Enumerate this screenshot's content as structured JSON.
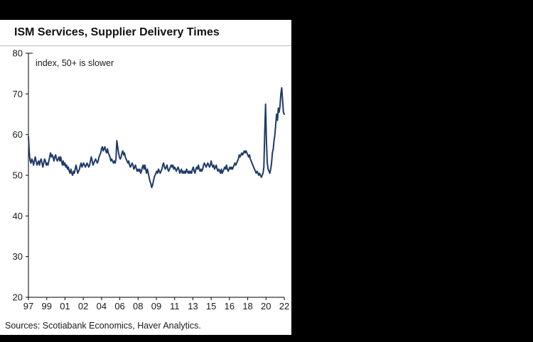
{
  "header": {
    "title": "ISM Services, Supplier Delivery Times"
  },
  "footer": {
    "sources": "Sources: Scotiabank Economics, Haver Analytics."
  },
  "colors": {
    "background": "#000000",
    "panel": "#ffffff",
    "line": "#1e3a68",
    "axis": "#000000",
    "divider": "#bcbcbc",
    "text": "#1a1a1a"
  },
  "chart_data": {
    "type": "line",
    "title": "ISM Services, Supplier Delivery Times",
    "annotation": "index, 50+ is slower",
    "xlabel": "",
    "ylabel": "",
    "ylim": [
      20,
      80
    ],
    "y_ticks": [
      80,
      70,
      60,
      50,
      40,
      30,
      20
    ],
    "x_tick_labels": [
      "97",
      "99",
      "01",
      "02",
      "04",
      "06",
      "08",
      "09",
      "11",
      "13",
      "15",
      "16",
      "18",
      "20",
      "22"
    ],
    "grid": false,
    "legend": "none",
    "series": [
      {
        "name": "ISM Services Supplier Delivery Times",
        "color": "#1e3a68",
        "frequency": "monthly",
        "start_year": 1997,
        "end": "2022-02",
        "values": [
          59.5,
          55.5,
          53.5,
          53.0,
          54.0,
          53.5,
          52.5,
          53.5,
          54.5,
          53.5,
          52.5,
          53.0,
          53.5,
          52.5,
          53.5,
          54.0,
          53.0,
          52.0,
          53.0,
          54.0,
          53.5,
          52.5,
          53.0,
          52.5,
          53.5,
          54.5,
          55.5,
          54.5,
          55.0,
          54.5,
          53.5,
          54.5,
          55.0,
          54.0,
          53.5,
          54.0,
          54.5,
          53.5,
          54.5,
          53.5,
          52.5,
          53.5,
          52.5,
          53.0,
          52.0,
          52.5,
          51.5,
          52.0,
          51.0,
          50.5,
          51.5,
          50.5,
          50.0,
          51.0,
          50.5,
          51.5,
          52.5,
          51.5,
          50.5,
          51.0,
          51.5,
          52.5,
          53.0,
          52.0,
          52.5,
          53.0,
          52.5,
          52.0,
          52.5,
          53.0,
          52.5,
          52.0,
          52.5,
          53.5,
          54.5,
          53.5,
          52.5,
          53.0,
          53.5,
          54.0,
          53.5,
          53.0,
          53.5,
          54.5,
          55.0,
          55.5,
          56.5,
          57.0,
          56.0,
          56.5,
          57.0,
          56.0,
          55.5,
          56.5,
          55.5,
          55.0,
          54.5,
          53.5,
          54.0,
          53.5,
          53.0,
          53.5,
          53.0,
          54.0,
          58.5,
          57.0,
          55.5,
          54.5,
          54.0,
          54.5,
          55.5,
          56.0,
          55.0,
          55.5,
          54.5,
          54.0,
          53.5,
          53.0,
          53.5,
          52.5,
          52.0,
          52.5,
          53.0,
          52.5,
          51.5,
          52.0,
          52.5,
          51.5,
          51.0,
          51.5,
          51.0,
          51.5,
          50.5,
          51.0,
          52.0,
          52.5,
          51.5,
          52.5,
          51.5,
          50.5,
          51.5,
          50.5,
          49.5,
          48.5,
          48.0,
          47.0,
          47.5,
          48.5,
          49.5,
          50.0,
          50.5,
          51.0,
          50.5,
          51.5,
          51.0,
          50.5,
          51.0,
          51.5,
          52.5,
          53.0,
          52.0,
          51.5,
          52.0,
          52.5,
          51.5,
          51.0,
          51.5,
          52.0,
          52.5,
          52.0,
          52.5,
          51.5,
          52.0,
          51.5,
          51.0,
          51.5,
          52.0,
          51.5,
          50.5,
          51.0,
          51.5,
          50.5,
          51.0,
          50.5,
          51.0,
          50.5,
          51.5,
          51.0,
          50.5,
          51.0,
          50.5,
          51.0,
          50.5,
          51.5,
          52.0,
          51.0,
          50.5,
          51.5,
          52.0,
          51.5,
          52.5,
          51.5,
          51.0,
          51.5,
          51.0,
          51.5,
          52.5,
          53.0,
          52.5,
          52.0,
          52.5,
          53.0,
          52.5,
          52.0,
          52.5,
          53.5,
          52.5,
          52.0,
          52.5,
          51.5,
          52.0,
          52.5,
          51.5,
          51.0,
          51.5,
          51.0,
          50.5,
          51.5,
          50.5,
          51.0,
          51.5,
          52.0,
          51.5,
          52.5,
          51.5,
          51.0,
          51.5,
          52.0,
          51.5,
          52.0,
          51.5,
          52.0,
          52.5,
          53.0,
          52.5,
          53.0,
          53.5,
          54.0,
          55.0,
          54.5,
          55.0,
          55.5,
          55.0,
          55.5,
          56.0,
          55.5,
          56.0,
          55.5,
          55.0,
          54.5,
          55.0,
          54.0,
          53.5,
          53.0,
          52.5,
          52.0,
          51.5,
          51.0,
          50.5,
          51.0,
          50.5,
          50.0,
          50.5,
          50.0,
          49.5,
          50.0,
          50.5,
          52.0,
          60.5,
          67.5,
          58.5,
          53.0,
          51.5,
          51.0,
          50.5,
          51.5,
          53.0,
          55.5,
          56.5,
          58.5,
          60.0,
          62.5,
          65.0,
          63.5,
          66.5,
          65.5,
          67.0,
          70.0,
          71.5,
          68.5,
          65.5,
          65.0
        ]
      }
    ]
  }
}
